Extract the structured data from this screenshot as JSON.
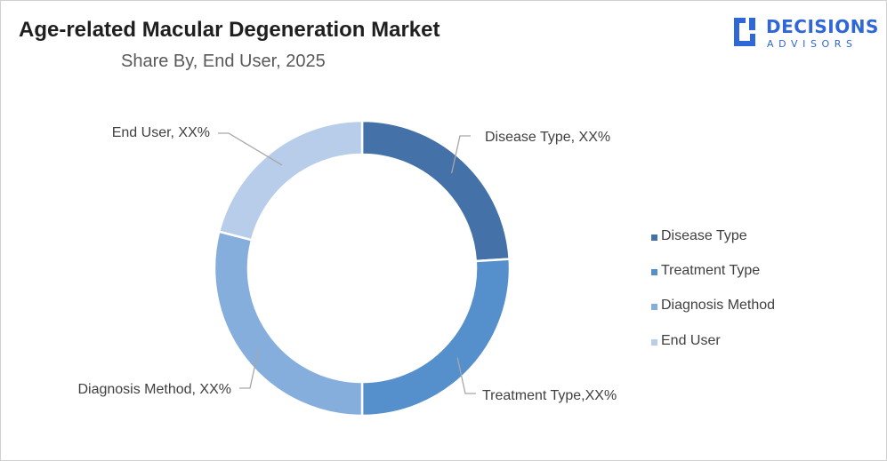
{
  "header": {
    "title": "Age-related Macular Degeneration Market",
    "subtitle": "Share By, End User, 2025"
  },
  "logo": {
    "name": "DECISIONS",
    "tagline": "ADVISORS",
    "color": "#2f66d8"
  },
  "chart_data": {
    "type": "pie",
    "variant": "doughnut",
    "title": "Age-related Macular Degeneration Market",
    "subtitle": "Share By, End User, 2025",
    "categories": [
      "Disease Type",
      "Treatment Type",
      "Diagnosis Method",
      "End User"
    ],
    "values": [
      24,
      26,
      29,
      21
    ],
    "colors": [
      "#4472a8",
      "#5590cc",
      "#86aedd",
      "#b8cde9"
    ],
    "data_labels": [
      "Disease Type, XX%",
      "Treatment Type,XX%",
      "Diagnosis Method, XX%",
      "End User, XX%"
    ],
    "legend": {
      "placement": "right",
      "entries": [
        "Disease Type",
        "Treatment Type",
        "Diagnosis Method",
        "End User"
      ]
    }
  }
}
